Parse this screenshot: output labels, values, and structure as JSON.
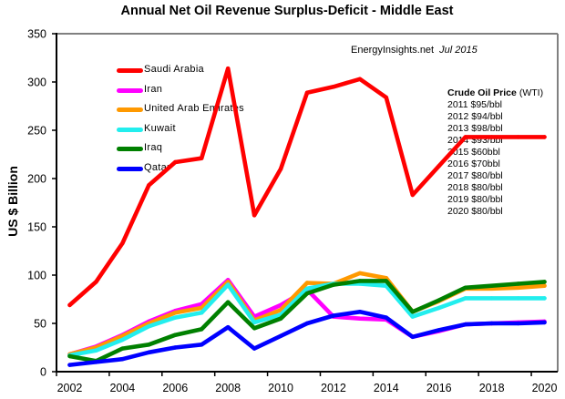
{
  "chart_data": {
    "type": "line",
    "title": "Annual Net Oil Revenue Surplus-Deficit - Middle East",
    "xlabel": "",
    "ylabel": "US $ Billion",
    "x": [
      2002,
      2003,
      2004,
      2005,
      2006,
      2007,
      2008,
      2009,
      2010,
      2011,
      2012,
      2013,
      2014,
      2015,
      2016,
      2017,
      2018,
      2019,
      2020
    ],
    "xtick_labels": [
      "2002",
      "2004",
      "2006",
      "2008",
      "2010",
      "2012",
      "2014",
      "2016",
      "2018",
      "2020"
    ],
    "ylim": [
      0,
      350
    ],
    "yticks": [
      0,
      50,
      100,
      150,
      200,
      250,
      300,
      350
    ],
    "ytick_labels": [
      "0",
      "50",
      "100",
      "150",
      "200",
      "250",
      "300",
      "350"
    ],
    "grid": false,
    "legend": {
      "position": "top-left"
    },
    "series": [
      {
        "name": "Saudi Arabia",
        "color": "#FF0000",
        "values": [
          69,
          93,
          133,
          193,
          217,
          221,
          314,
          162,
          210,
          289,
          295,
          303,
          284,
          183,
          213,
          243,
          243,
          243,
          243
        ]
      },
      {
        "name": "Iran",
        "color": "#FF00FF",
        "values": [
          18,
          26,
          38,
          52,
          63,
          70,
          95,
          57,
          69,
          85,
          57,
          55,
          54,
          36,
          42,
          49,
          50,
          51,
          52
        ]
      },
      {
        "name": "United Arab Emirates",
        "color": "#FF9900",
        "values": [
          18,
          25,
          37,
          50,
          61,
          66,
          93,
          53,
          64,
          92,
          91,
          102,
          97,
          62,
          73,
          86,
          86,
          87,
          89
        ]
      },
      {
        "name": "Kuwait",
        "color": "#22EEEE",
        "values": [
          17,
          22,
          33,
          47,
          56,
          61,
          90,
          51,
          59,
          86,
          91,
          91,
          89,
          57,
          66,
          76,
          76,
          76,
          76
        ]
      },
      {
        "name": "Iraq",
        "color": "#008000",
        "values": [
          16,
          11,
          24,
          28,
          38,
          44,
          72,
          45,
          55,
          81,
          90,
          94,
          94,
          62,
          74,
          87,
          89,
          91,
          93
        ]
      },
      {
        "name": "Qatar",
        "color": "#0000FF",
        "values": [
          7,
          10,
          13,
          20,
          25,
          28,
          46,
          24,
          37,
          50,
          58,
          62,
          56,
          36,
          43,
          49,
          50,
          50,
          51
        ]
      }
    ],
    "annotations": {
      "source": "EnergyInsights.net",
      "date": "Jul 2015",
      "crude_oil_price": {
        "heading": "Crude Oil Price",
        "heading_suffix": "(WTI)",
        "rows": [
          "2011 $95/bbl",
          "2012 $94/bbl",
          "2013 $98/bbl",
          "2014 $93/bbl",
          "2015 $60bbl",
          "2016 $70bbl",
          "2017 $80/bbl",
          "2018 $80/bbl",
          "2019 $80/bbl",
          "2020 $80/bbl"
        ]
      }
    }
  }
}
